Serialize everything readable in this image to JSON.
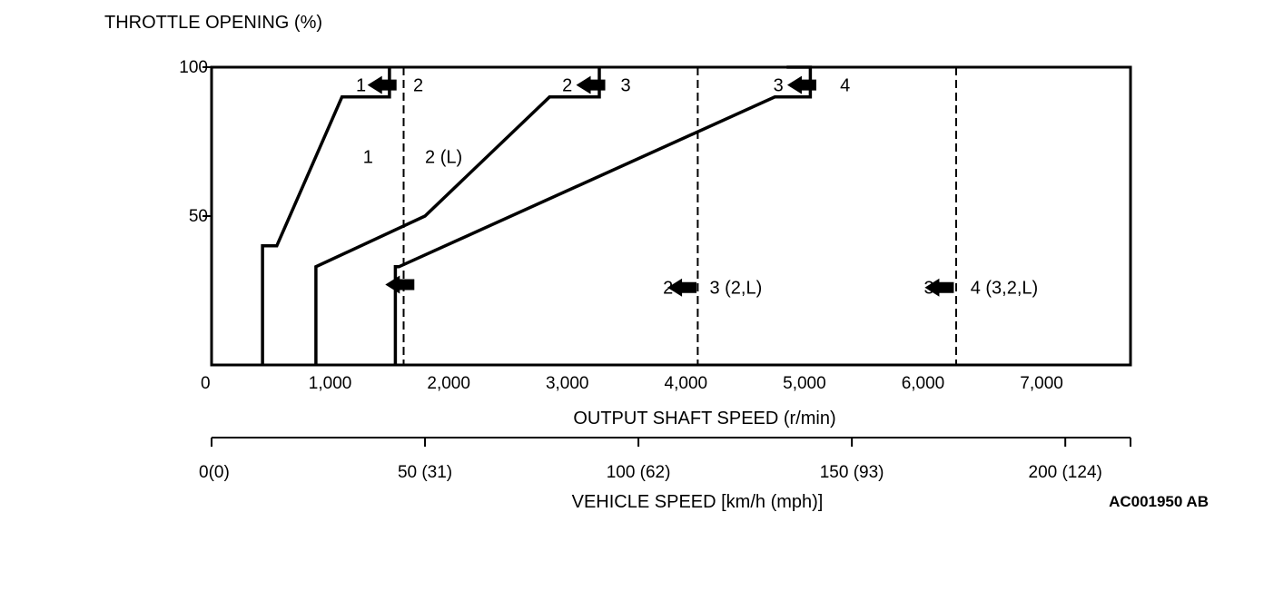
{
  "chart_data": {
    "type": "line",
    "y_axis_label": "THROTTLE OPENING (%)",
    "x_axis_label": "OUTPUT SHAFT SPEED (r/min)",
    "secondary_axis_label": "VEHICLE SPEED [km/h (mph)]",
    "xlim": [
      0,
      7750
    ],
    "ylim": [
      0,
      100
    ],
    "y_ticks": [
      {
        "value": 100,
        "label": "100"
      },
      {
        "value": 50,
        "label": "50"
      }
    ],
    "x_ticks": [
      {
        "value": 0,
        "label": "0"
      },
      {
        "value": 1000,
        "label": "1,000"
      },
      {
        "value": 2000,
        "label": "2,000"
      },
      {
        "value": 3000,
        "label": "3,000"
      },
      {
        "value": 4000,
        "label": "4,000"
      },
      {
        "value": 5000,
        "label": "5,000"
      },
      {
        "value": 6000,
        "label": "6,000"
      },
      {
        "value": 7000,
        "label": "7,000"
      }
    ],
    "secondary_ticks": [
      {
        "value": 0,
        "label": "0(0)"
      },
      {
        "value": 1800,
        "label": "50 (31)"
      },
      {
        "value": 3600,
        "label": "100 (62)"
      },
      {
        "value": 5400,
        "label": "150 (93)"
      },
      {
        "value": 7200,
        "label": "200 (124)"
      }
    ],
    "series": [
      {
        "key": "downshift-2-1",
        "style": "solid",
        "points": [
          [
            1500,
            100
          ],
          [
            1500,
            90
          ],
          [
            1100,
            90
          ],
          [
            550,
            40
          ],
          [
            430,
            40
          ],
          [
            430,
            0
          ]
        ]
      },
      {
        "key": "downshift-3-2",
        "style": "solid",
        "points": [
          [
            3270,
            100
          ],
          [
            3270,
            90
          ],
          [
            2850,
            90
          ],
          [
            1800,
            50
          ],
          [
            880,
            33
          ],
          [
            880,
            0
          ]
        ]
      },
      {
        "key": "downshift-4-3",
        "style": "solid",
        "points": [
          [
            4850,
            100
          ],
          [
            5050,
            100
          ],
          [
            5050,
            90
          ],
          [
            4750,
            90
          ],
          [
            1580,
            33
          ],
          [
            1550,
            33
          ],
          [
            1550,
            0
          ]
        ]
      },
      {
        "key": "upshift-1-2",
        "style": "dashed",
        "points": [
          [
            1620,
            100
          ],
          [
            1620,
            0
          ]
        ]
      },
      {
        "key": "upshift-2-3",
        "style": "dashed",
        "points": [
          [
            4100,
            100
          ],
          [
            4100,
            0
          ]
        ]
      },
      {
        "key": "upshift-3-4",
        "style": "dashed",
        "points": [
          [
            6280,
            100
          ],
          [
            6280,
            0
          ]
        ]
      }
    ],
    "annotations": [
      {
        "text": "1",
        "x": 1260,
        "y": 94,
        "anchor": "middle"
      },
      {
        "text": "2",
        "x": 1700,
        "y": 94,
        "anchor": "start"
      },
      {
        "text": "2",
        "x": 3000,
        "y": 94,
        "anchor": "middle"
      },
      {
        "text": "3",
        "x": 3450,
        "y": 94,
        "anchor": "start"
      },
      {
        "text": "3",
        "x": 4780,
        "y": 94,
        "anchor": "middle"
      },
      {
        "text": "4",
        "x": 5300,
        "y": 94,
        "anchor": "start"
      },
      {
        "text": "1",
        "x": 1320,
        "y": 70,
        "anchor": "middle"
      },
      {
        "text": "2 (L)",
        "x": 1800,
        "y": 70,
        "anchor": "start"
      },
      {
        "text": "2",
        "x": 3850,
        "y": 26,
        "anchor": "middle"
      },
      {
        "text": "3 (2,L)",
        "x": 4200,
        "y": 26,
        "anchor": "start"
      },
      {
        "text": "3",
        "x": 6050,
        "y": 26,
        "anchor": "middle"
      },
      {
        "text": "4 (3,2,L)",
        "x": 6400,
        "y": 26,
        "anchor": "start"
      }
    ],
    "arrows": [
      {
        "x": 1560,
        "y": 94
      },
      {
        "x": 3320,
        "y": 94
      },
      {
        "x": 5100,
        "y": 94
      },
      {
        "x": 1710,
        "y": 27
      },
      {
        "x": 4090,
        "y": 26
      },
      {
        "x": 6260,
        "y": 26
      }
    ],
    "reference_code": "AC001950 AB"
  }
}
